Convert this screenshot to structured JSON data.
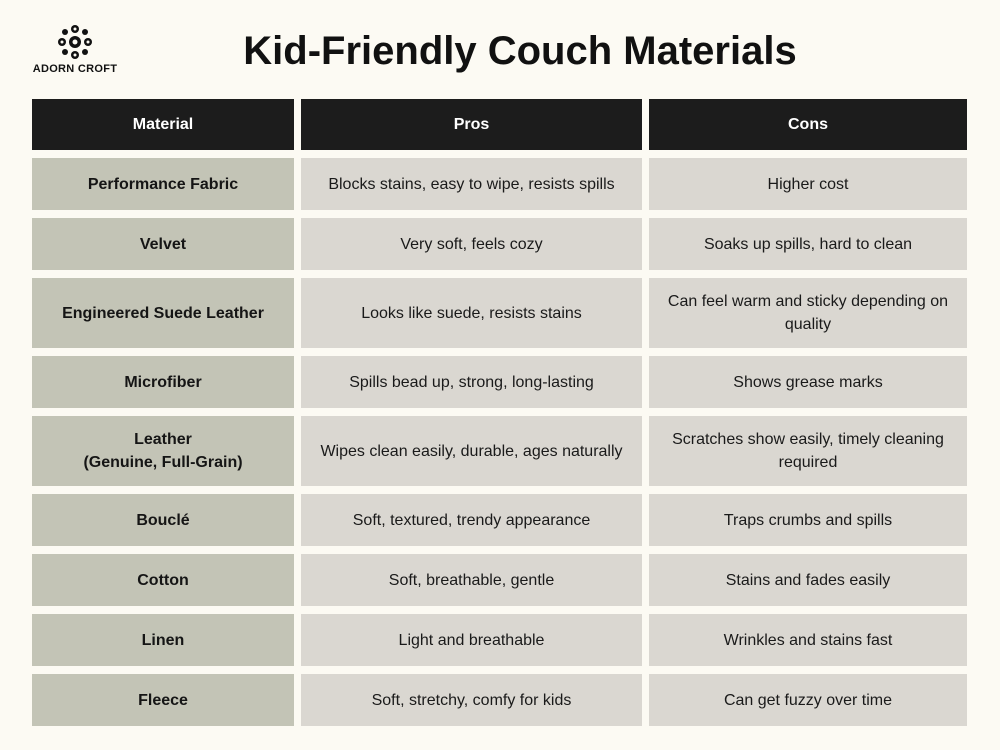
{
  "brand": {
    "name": "ADORN CROFT"
  },
  "title": "Kid-Friendly Couch Materials",
  "table": {
    "headers": [
      "Material",
      "Pros",
      "Cons"
    ],
    "rows": [
      {
        "material": "Performance Fabric",
        "pros": "Blocks stains, easy to wipe, resists spills",
        "cons": "Higher cost"
      },
      {
        "material": "Velvet",
        "pros": "Very soft, feels cozy",
        "cons": "Soaks up spills, hard to clean"
      },
      {
        "material": "Engineered Suede Leather",
        "pros": "Looks like suede, resists stains",
        "cons": "Can feel warm and sticky depending on quality"
      },
      {
        "material": "Microfiber",
        "pros": "Spills bead up, strong, long-lasting",
        "cons": "Shows grease marks"
      },
      {
        "material": "Leather",
        "material_sub": "(Genuine, Full-Grain)",
        "pros": "Wipes clean easily, durable, ages naturally",
        "cons": "Scratches show easily, timely cleaning required"
      },
      {
        "material": "Bouclé",
        "pros": "Soft, textured, trendy appearance",
        "cons": "Traps crumbs and spills"
      },
      {
        "material": "Cotton",
        "pros": "Soft, breathable, gentle",
        "cons": "Stains and fades easily"
      },
      {
        "material": "Linen",
        "pros": "Light and breathable",
        "cons": "Wrinkles and stains fast"
      },
      {
        "material": "Fleece",
        "pros": "Soft, stretchy, comfy for kids",
        "cons": "Can get fuzzy over time"
      }
    ]
  }
}
